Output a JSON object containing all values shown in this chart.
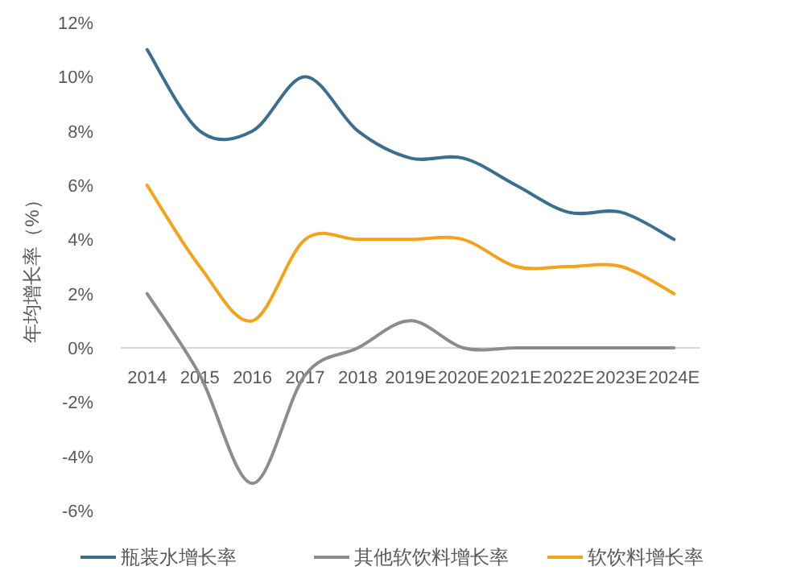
{
  "chart_data": {
    "type": "line",
    "ylabel": "年均增长率（%）",
    "categories": [
      "2014",
      "2015",
      "2016",
      "2017",
      "2018",
      "2019E",
      "2020E",
      "2021E",
      "2022E",
      "2023E",
      "2024E"
    ],
    "series": [
      {
        "name": "瓶装水增长率",
        "color": "#3b6e8f",
        "values": [
          11,
          8,
          8,
          10,
          8,
          7,
          7,
          6,
          5,
          5,
          4
        ]
      },
      {
        "name": "其他软饮料增长率",
        "color": "#8c8c8c",
        "values": [
          2,
          -1,
          -5,
          -1,
          0,
          1,
          0,
          0,
          0,
          0,
          0
        ]
      },
      {
        "name": "软饮料增长率",
        "color": "#f5a21b",
        "values": [
          6,
          3,
          1,
          4,
          4,
          4,
          4,
          3,
          3,
          3,
          2
        ]
      }
    ],
    "ylim": [
      -6,
      12
    ],
    "yticks": [
      {
        "value": -6,
        "label": "-6%"
      },
      {
        "value": -4,
        "label": "-4%"
      },
      {
        "value": -2,
        "label": "-2%"
      },
      {
        "value": 0,
        "label": "0%"
      },
      {
        "value": 2,
        "label": "2%"
      },
      {
        "value": 4,
        "label": "4%"
      },
      {
        "value": 6,
        "label": "6%"
      },
      {
        "value": 8,
        "label": "8%"
      },
      {
        "value": 10,
        "label": "10%"
      },
      {
        "value": 12,
        "label": "12%"
      }
    ],
    "legend": "bottom",
    "marker": "none",
    "line_style": "solid",
    "grid": false
  }
}
